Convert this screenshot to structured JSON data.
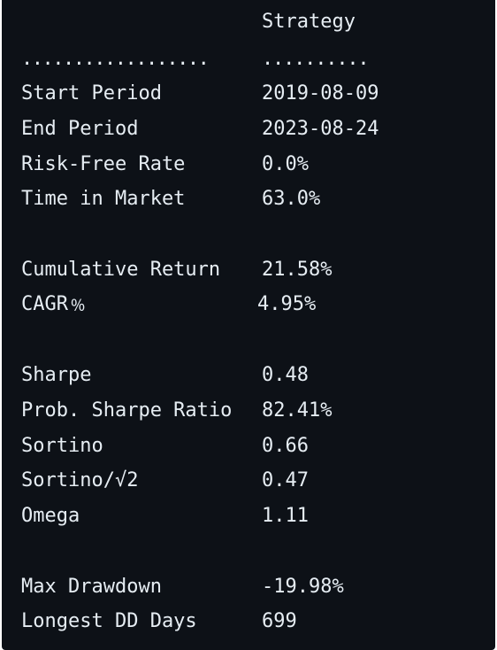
{
  "table": {
    "column_header": "Strategy",
    "separator_left": "..................",
    "separator_right": "..........",
    "rows": [
      {
        "label": "Start Period",
        "value": "2019-08-09"
      },
      {
        "label": "End Period",
        "value": "2023-08-24"
      },
      {
        "label": "Risk-Free Rate",
        "value": "0.0%"
      },
      {
        "label": "Time in Market",
        "value": "63.0%"
      },
      {
        "label": "Cumulative Return",
        "value": "21.58%"
      },
      {
        "label": "CAGR﹪",
        "value": "4.95%"
      },
      {
        "label": "Sharpe",
        "value": "0.48"
      },
      {
        "label": "Prob. Sharpe Ratio",
        "value": "82.41%"
      },
      {
        "label": "Sortino",
        "value": "0.66"
      },
      {
        "label": "Sortino/√2",
        "value": "0.47"
      },
      {
        "label": "Omega",
        "value": "1.11"
      },
      {
        "label": "Max Drawdown",
        "value": "-19.98%"
      },
      {
        "label": "Longest DD Days",
        "value": "699"
      }
    ]
  }
}
